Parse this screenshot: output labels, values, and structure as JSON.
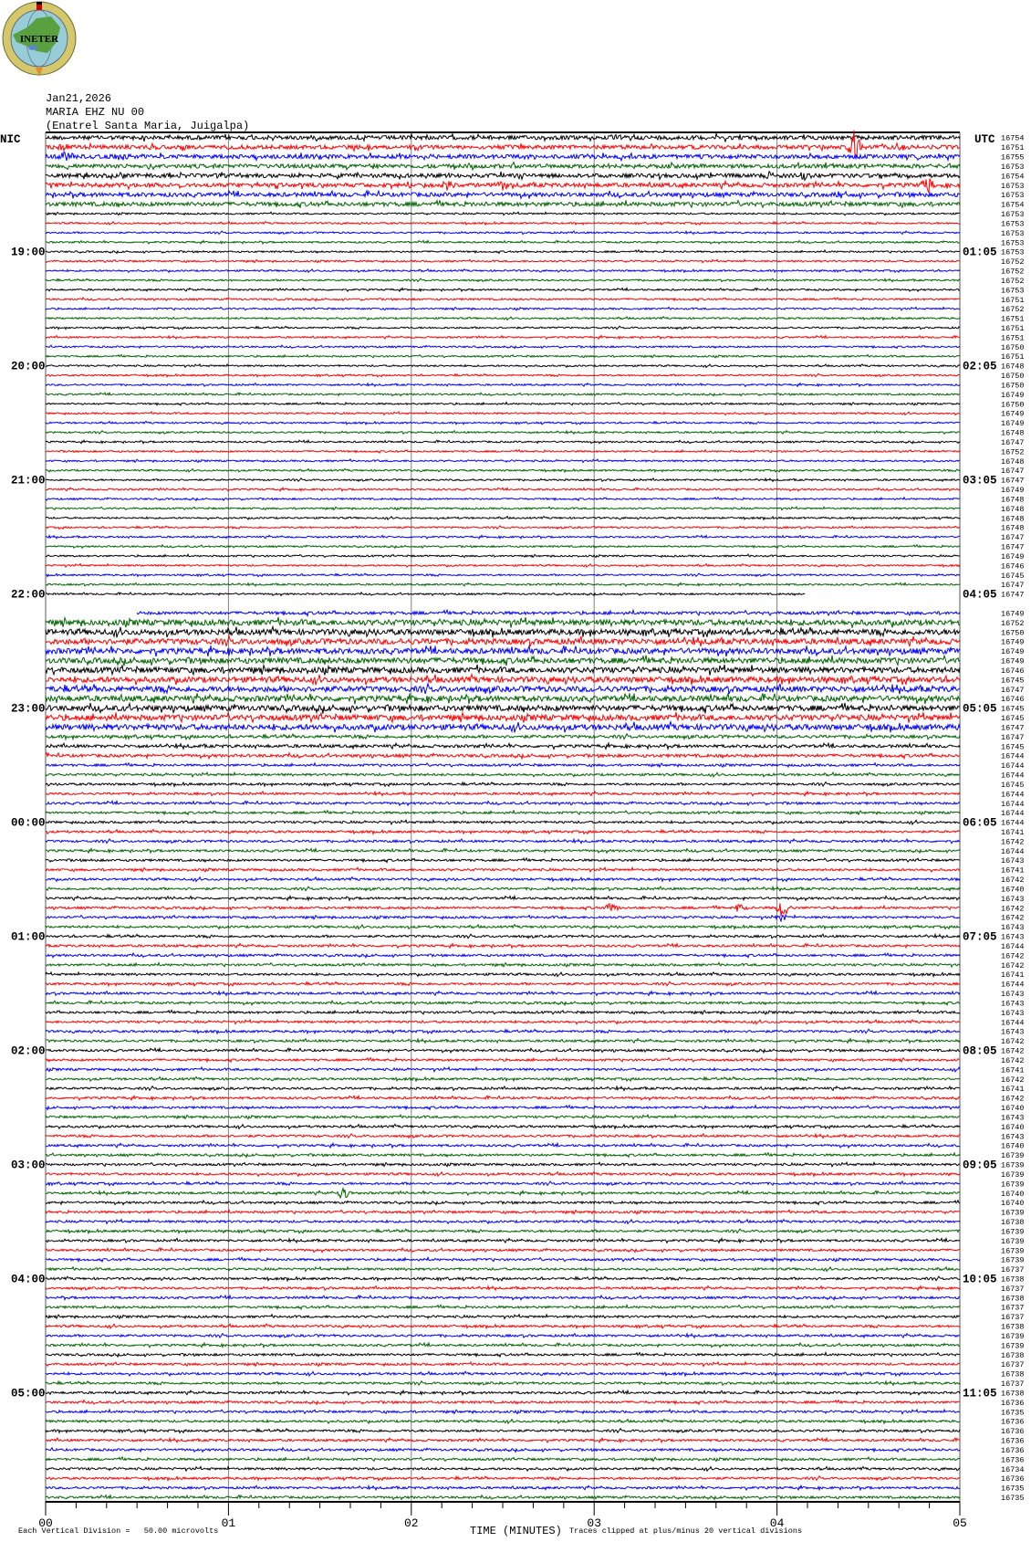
{
  "logo": {
    "text": "INETER"
  },
  "header": {
    "date": "Jan21,2026",
    "station": "MARIA EHZ NU 00",
    "location": "(Enatrel Santa Maria, Juigalpa)"
  },
  "left_zone": "NIC",
  "right_zone": "UTC",
  "colors": {
    "cycle": [
      "#000000",
      "#ff0000",
      "#0000ff",
      "#006400"
    ],
    "grid": "#808080"
  },
  "chart_data": {
    "type": "line",
    "subtype": "helicorder",
    "xlabel": "TIME (MINUTES)",
    "x_ticks": [
      "00",
      "01",
      "02",
      "03",
      "04",
      "05"
    ],
    "xlim": [
      0,
      5
    ],
    "minutes_per_row": 5,
    "grid": "vertical at each minute",
    "hour_labels_left": [
      {
        "row": 13,
        "label": "19:00"
      },
      {
        "row": 25,
        "label": "20:00"
      },
      {
        "row": 37,
        "label": "21:00"
      },
      {
        "row": 49,
        "label": "22:00"
      },
      {
        "row": 61,
        "label": "23:00"
      },
      {
        "row": 73,
        "label": "00:00"
      },
      {
        "row": 85,
        "label": "01:00"
      },
      {
        "row": 97,
        "label": "02:00"
      },
      {
        "row": 109,
        "label": "03:00"
      },
      {
        "row": 121,
        "label": "04:00"
      },
      {
        "row": 133,
        "label": "05:00"
      }
    ],
    "hour_labels_right": [
      {
        "row": 13,
        "label": "01:05"
      },
      {
        "row": 25,
        "label": "02:05"
      },
      {
        "row": 37,
        "label": "03:05"
      },
      {
        "row": 49,
        "label": "04:05"
      },
      {
        "row": 61,
        "label": "05:05"
      },
      {
        "row": 73,
        "label": "06:05"
      },
      {
        "row": 85,
        "label": "07:05"
      },
      {
        "row": 97,
        "label": "08:05"
      },
      {
        "row": 109,
        "label": "09:05"
      },
      {
        "row": 121,
        "label": "10:05"
      },
      {
        "row": 133,
        "label": "11:05"
      }
    ],
    "row_counts": [
      "16754",
      "16751",
      "16755",
      "16753",
      "16754",
      "16753",
      "16753",
      "16754",
      "16753",
      "16753",
      "16753",
      "16753",
      "16753",
      "16752",
      "16752",
      "16752",
      "16753",
      "16751",
      "16752",
      "16751",
      "16751",
      "16751",
      "16750",
      "16751",
      "16748",
      "16750",
      "16750",
      "16749",
      "16750",
      "16749",
      "16749",
      "16748",
      "16747",
      "16752",
      "16748",
      "16747",
      "16747",
      "16749",
      "16748",
      "16748",
      "16748",
      "16748",
      "16747",
      "16747",
      "16749",
      "16746",
      "16745",
      "16747",
      "16747",
      "",
      "16749",
      "16752",
      "16750",
      "16749",
      "16749",
      "16749",
      "16746",
      "16745",
      "16747",
      "16746",
      "16745",
      "16745",
      "16747",
      "16747",
      "16745",
      "16744",
      "16744",
      "16744",
      "16745",
      "16744",
      "16744",
      "16744",
      "16744",
      "16741",
      "16742",
      "16744",
      "16743",
      "16741",
      "16742",
      "16740",
      "16743",
      "16742",
      "16742",
      "16743",
      "16743",
      "16744",
      "16742",
      "16742",
      "16741",
      "16744",
      "16743",
      "16743",
      "16743",
      "16744",
      "16743",
      "16742",
      "16742",
      "16742",
      "16741",
      "16742",
      "16741",
      "16742",
      "16740",
      "16743",
      "16740",
      "16743",
      "16740",
      "16739",
      "16739",
      "16739",
      "16739",
      "16740",
      "16740",
      "16739",
      "16738",
      "16739",
      "16739",
      "16739",
      "16739",
      "16737",
      "16738",
      "16737",
      "16738",
      "16737",
      "16737",
      "16738",
      "16739",
      "16739",
      "16738",
      "16737",
      "16738",
      "16737",
      "16738",
      "16736",
      "16735",
      "16736",
      "16736",
      "16736",
      "16736",
      "16736",
      "16734",
      "16736",
      "16735",
      "16735"
    ],
    "data_gaps": [
      {
        "row": 49,
        "from_min": 4.15,
        "to_min": 5
      },
      {
        "row": 50,
        "from_min": 0,
        "to_min": 5
      },
      {
        "row": 51,
        "from_min": 0,
        "to_min": 0.5
      }
    ]
  },
  "footer": {
    "scale": "Each Vertical Division =   50.00 microvolts",
    "clip": "Traces clipped at plus/minus 20 vertical divisions"
  }
}
